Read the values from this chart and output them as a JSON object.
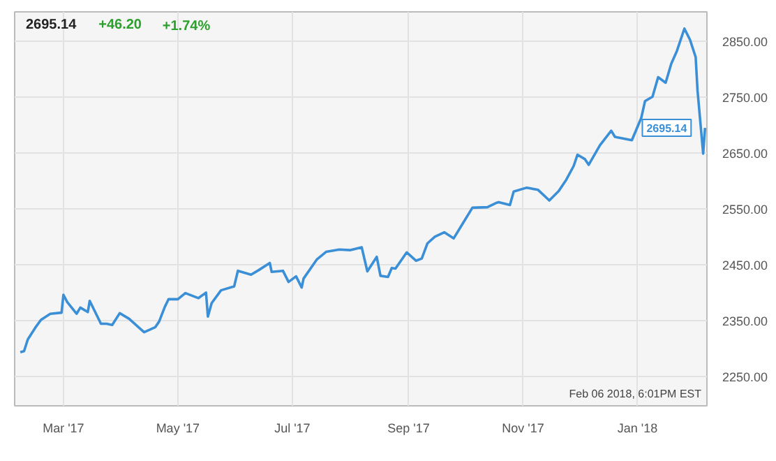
{
  "chart_data": {
    "type": "line",
    "title": "2695.14",
    "annotations": [
      "+46.20",
      "+1.74%",
      "Feb 06 2018, 6:01PM EST",
      {
        "text": "2695.14",
        "x": "2018-02-06",
        "y": 2695.14
      }
    ],
    "x": [
      "2017-02-06",
      "2017-02-08",
      "2017-02-10",
      "2017-02-14",
      "2017-02-17",
      "2017-02-22",
      "2017-02-28",
      "2017-03-01",
      "2017-03-03",
      "2017-03-08",
      "2017-03-10",
      "2017-03-14",
      "2017-03-15",
      "2017-03-21",
      "2017-03-24",
      "2017-03-27",
      "2017-03-31",
      "2017-04-05",
      "2017-04-13",
      "2017-04-19",
      "2017-04-21",
      "2017-04-24",
      "2017-04-26",
      "2017-05-01",
      "2017-05-05",
      "2017-05-12",
      "2017-05-16",
      "2017-05-17",
      "2017-05-19",
      "2017-05-24",
      "2017-05-31",
      "2017-06-02",
      "2017-06-09",
      "2017-06-13",
      "2017-06-19",
      "2017-06-20",
      "2017-06-26",
      "2017-06-29",
      "2017-07-03",
      "2017-07-06",
      "2017-07-07",
      "2017-07-14",
      "2017-07-19",
      "2017-07-26",
      "2017-08-01",
      "2017-08-07",
      "2017-08-10",
      "2017-08-15",
      "2017-08-17",
      "2017-08-21",
      "2017-08-23",
      "2017-08-25",
      "2017-08-31",
      "2017-09-05",
      "2017-09-08",
      "2017-09-11",
      "2017-09-15",
      "2017-09-20",
      "2017-09-25",
      "2017-09-29",
      "2017-10-05",
      "2017-10-13",
      "2017-10-18",
      "2017-10-19",
      "2017-10-25",
      "2017-10-27",
      "2017-11-03",
      "2017-11-09",
      "2017-11-15",
      "2017-11-20",
      "2017-11-24",
      "2017-11-28",
      "2017-11-30",
      "2017-12-04",
      "2017-12-06",
      "2017-12-12",
      "2017-12-18",
      "2017-12-20",
      "2017-12-29",
      "2018-01-03",
      "2018-01-05",
      "2018-01-09",
      "2018-01-12",
      "2018-01-16",
      "2018-01-19",
      "2018-01-22",
      "2018-01-26",
      "2018-01-29",
      "2018-02-01",
      "2018-02-02",
      "2018-02-05",
      "2018-02-06"
    ],
    "series": [
      {
        "color": "#3b8fd6",
        "values": [
          2293,
          2295,
          2316,
          2337,
          2351,
          2362,
          2364,
          2396,
          2383,
          2362,
          2373,
          2365,
          2385,
          2344,
          2344,
          2342,
          2363,
          2353,
          2329,
          2338,
          2348,
          2374,
          2388,
          2388,
          2399,
          2390,
          2400,
          2357,
          2381,
          2404,
          2411,
          2439,
          2432,
          2440,
          2453,
          2437,
          2439,
          2419,
          2429,
          2409,
          2425,
          2459,
          2473,
          2477,
          2476,
          2481,
          2438,
          2464,
          2430,
          2428,
          2444,
          2443,
          2472,
          2457,
          2461,
          2488,
          2500,
          2508,
          2497,
          2519,
          2552,
          2553,
          2561,
          2562,
          2557,
          2581,
          2588,
          2584,
          2565,
          2582,
          2602,
          2627,
          2647,
          2639,
          2629,
          2664,
          2690,
          2679,
          2673,
          2713,
          2743,
          2751,
          2786,
          2776,
          2810,
          2833,
          2873,
          2853,
          2822,
          2762,
          2649,
          2695.14
        ]
      }
    ],
    "xlim": [
      "2017-02-03",
      "2018-02-07"
    ],
    "xticks": [
      {
        "value": "2017-03-01",
        "label": "Mar '17"
      },
      {
        "value": "2017-05-01",
        "label": "May '17"
      },
      {
        "value": "2017-07-01",
        "label": "Jul '17"
      },
      {
        "value": "2017-09-01",
        "label": "Sep '17"
      },
      {
        "value": "2017-11-01",
        "label": "Nov '17"
      },
      {
        "value": "2018-01-01",
        "label": "Jan '18"
      }
    ],
    "ylim": [
      2197,
      2903
    ],
    "yticks": [
      {
        "value": 2250,
        "label": "2250.00"
      },
      {
        "value": 2350,
        "label": "2350.00"
      },
      {
        "value": 2450,
        "label": "2450.00"
      },
      {
        "value": 2550,
        "label": "2550.00"
      },
      {
        "value": 2650,
        "label": "2650.00"
      },
      {
        "value": 2750,
        "label": "2750.00"
      },
      {
        "value": 2850,
        "label": "2850.00"
      }
    ],
    "grid": true,
    "line_style": "solid",
    "marker": "none"
  }
}
